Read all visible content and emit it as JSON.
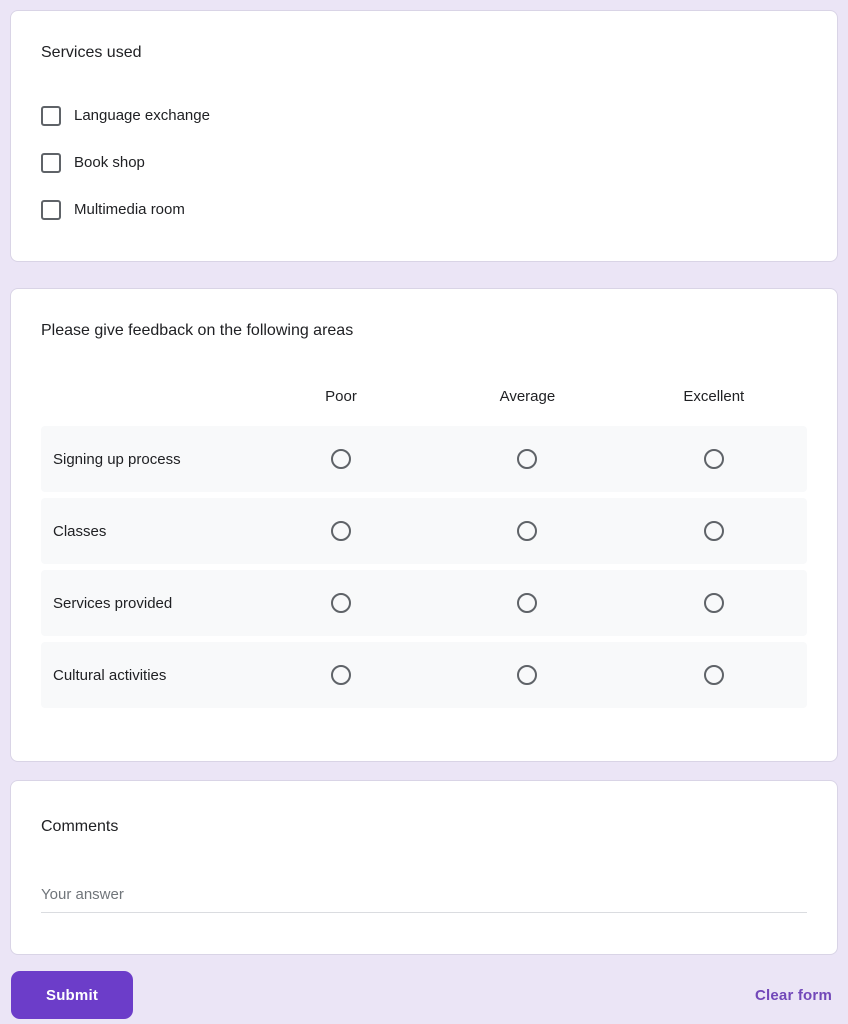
{
  "theme": {
    "background": "#ebe5f6",
    "card_bg": "#ffffff",
    "card_border": "#d9d4e6",
    "text_primary": "#202124",
    "text_secondary": "#70757a",
    "control_border": "#5f6368",
    "row_bg": "#f8f9fa",
    "underline": "#dadce0",
    "accent": "#6c3dc9",
    "link": "#7248b9",
    "button_text": "#ffffff"
  },
  "checkbox_question": {
    "title": "Services used",
    "options": [
      "Language exchange",
      "Book shop",
      "Multimedia room"
    ]
  },
  "grid_question": {
    "title": "Please give feedback on the following areas",
    "columns": [
      "Poor",
      "Average",
      "Excellent"
    ],
    "rows": [
      "Signing up process",
      "Classes",
      "Services provided",
      "Cultural activities"
    ]
  },
  "text_question": {
    "title": "Comments",
    "placeholder": "Your answer"
  },
  "footer": {
    "submit_label": "Submit",
    "clear_label": "Clear form"
  }
}
